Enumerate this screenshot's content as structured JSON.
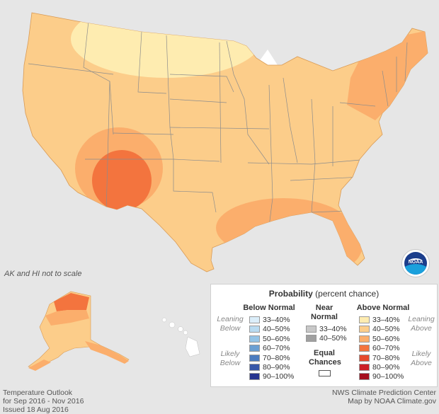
{
  "map": {
    "region": "Contiguous United States, Alaska, Hawaii",
    "colors": {
      "background": "#e6e6e6",
      "land_base": "#fccd8a",
      "leaning_above": "#feecb0",
      "prob_50_60": "#fbae6c",
      "prob_60_70": "#f3743e",
      "state_lines": "#8c8c8c",
      "water": "#ffffff"
    },
    "scale_note": "AK and HI not to scale"
  },
  "legend": {
    "title_bold": "Probability",
    "title_rest": "(percent chance)",
    "below_header": "Below Normal",
    "near_header": "Near\nNormal",
    "above_header": "Above Normal",
    "leaning_below": "Leaning\nBelow",
    "likely_below": "Likely\nBelow",
    "leaning_above": "Leaning\nAbove",
    "likely_above": "Likely\nAbove",
    "equal_chances": "Equal\nChances",
    "below": [
      {
        "label": "33–40%",
        "color": "#dbeefa"
      },
      {
        "label": "40–50%",
        "color": "#b9dbf1"
      },
      {
        "label": "50–60%",
        "color": "#94c4e6"
      },
      {
        "label": "60–70%",
        "color": "#6b9fd2"
      },
      {
        "label": "70–80%",
        "color": "#4c7cbf"
      },
      {
        "label": "80–90%",
        "color": "#3757a8"
      },
      {
        "label": "90–100%",
        "color": "#27348f"
      }
    ],
    "near": [
      {
        "label": "33–40%",
        "color": "#c8c8c8"
      },
      {
        "label": "40–50%",
        "color": "#a0a0a0"
      }
    ],
    "above": [
      {
        "label": "33–40%",
        "color": "#feecb0"
      },
      {
        "label": "40–50%",
        "color": "#fccd8a"
      },
      {
        "label": "50–60%",
        "color": "#fbae6c"
      },
      {
        "label": "60–70%",
        "color": "#f3743e"
      },
      {
        "label": "70–80%",
        "color": "#e54a2d"
      },
      {
        "label": "80–90%",
        "color": "#cc2027"
      },
      {
        "label": "90–100%",
        "color": "#a50f1d"
      }
    ]
  },
  "footer": {
    "line1": "Temperature Outlook",
    "line2": "for Sep 2016 - Nov 2016",
    "line3": "Issued 18 Aug 2016",
    "credit1": "NWS Climate Prediction Center",
    "credit2": "Map by NOAA Climate.gov"
  },
  "logo": {
    "text": "NOAA",
    "icon": "noaa-logo-icon"
  }
}
